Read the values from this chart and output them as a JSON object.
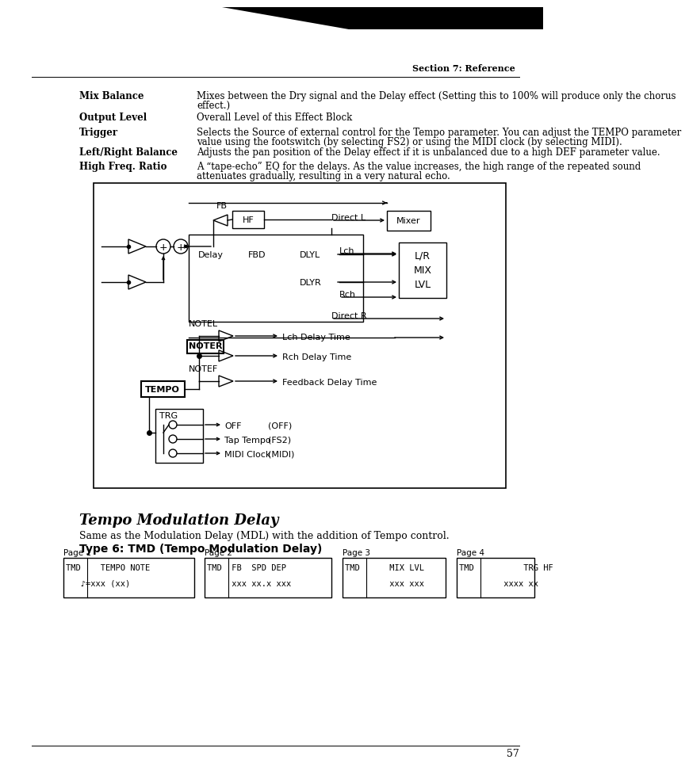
{
  "section_header": "Section 7: Reference",
  "page_number": "57",
  "bg_color": "#ffffff",
  "params": [
    {
      "term": "Mix Balance",
      "def1": "Mixes between the Dry signal and the Delay effect (Setting this to 100% will produce only the chorus",
      "def2": "effect.)"
    },
    {
      "term": "Output Level",
      "def1": "Overall Level of this Effect Block",
      "def2": ""
    },
    {
      "term": "Trigger",
      "def1": "Selects the Source of external control for the Tempo parameter. You can adjust the TEMPO parameter",
      "def2": "value using the footswitch (by selecting FS2) or using the MIDI clock (by selecting MIDI)."
    },
    {
      "term": "Left/Right Balance",
      "def1": "Adjusts the pan position of the Delay effect if it is unbalanced due to a high DEF parameter value.",
      "def2": ""
    },
    {
      "term": "High Freq. Ratio",
      "def1": "A “tape-echo” EQ for the delays. As the value increases, the high range of the repeated sound",
      "def2": "attenuates gradually, resulting in a very natural echo."
    }
  ],
  "italic_title": "Tempo Modulation Delay",
  "subtitle": "Same as the Modulation Delay (MDL) with the addition of Tempo control.",
  "type_header": "Type 6: TMD (Tempo Modulation Delay)",
  "pages": [
    {
      "label": "Page 1",
      "line1": "TMD    TEMPO NOTE",
      "line2": "   ♪=xxx (xx)"
    },
    {
      "label": "Page 2",
      "line1": "TMD  FB  SPD DEP",
      "line2": "     xxx xx.x xxx"
    },
    {
      "label": "Page 3",
      "line1": "TMD      MIX LVL",
      "line2": "         xxx xxx"
    },
    {
      "label": "Page 4",
      "line1": "TMD          TRG HF",
      "line2": "         xxxx xx"
    }
  ]
}
